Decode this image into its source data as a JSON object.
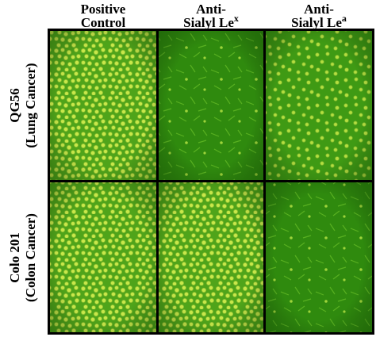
{
  "columns": [
    {
      "line1": "Positive",
      "line2": "Control"
    },
    {
      "line1": "Anti-",
      "line2": "Sialyl Le",
      "superscript": "x"
    },
    {
      "line1": "Anti-",
      "line2": "Sialyl Le",
      "superscript": "a"
    }
  ],
  "rows": [
    {
      "name": "QG56",
      "subtitle": "(Lung Cancer)"
    },
    {
      "name": "Colo 201",
      "subtitle": "(Colon Cancer)"
    }
  ]
}
